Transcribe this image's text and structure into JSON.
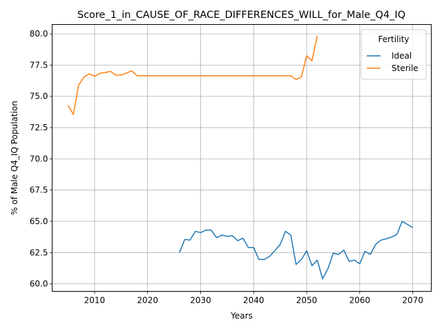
{
  "chart_data": {
    "type": "line",
    "title": "Score_1_in_CAUSE_OF_RACE_DIFFERENCES_WILL_for_Male_Q4_IQ",
    "xlabel": "Years",
    "ylabel": "% of Male Q4_IQ Population",
    "xlim": [
      2002,
      2073.5
    ],
    "ylim": [
      59.4,
      80.75
    ],
    "xticks": [
      2010,
      2020,
      2030,
      2040,
      2050,
      2060,
      2070
    ],
    "yticks": [
      60.0,
      62.5,
      65.0,
      67.5,
      70.0,
      72.5,
      75.0,
      77.5,
      80.0
    ],
    "grid": true,
    "legend": {
      "title": "Fertility",
      "placement": "top-right"
    },
    "colors": {
      "Ideal": "#1f77b4",
      "Sterile": "#ff7f0e"
    },
    "series": [
      {
        "name": "Ideal",
        "x": [
          2026,
          2027,
          2028,
          2029,
          2030,
          2031,
          2032,
          2033,
          2034,
          2035,
          2036,
          2037,
          2038,
          2039,
          2040,
          2041,
          2042,
          2043,
          2044,
          2045,
          2046,
          2047,
          2048,
          2049,
          2050,
          2051,
          2052,
          2053,
          2054,
          2055,
          2056,
          2057,
          2058,
          2059,
          2060,
          2061,
          2062,
          2063,
          2064,
          2065,
          2066,
          2067,
          2068,
          2069,
          2070
        ],
        "values": [
          62.5,
          63.55,
          63.5,
          64.2,
          64.1,
          64.3,
          64.3,
          63.7,
          63.9,
          63.8,
          63.85,
          63.45,
          63.65,
          62.9,
          62.9,
          61.95,
          61.95,
          62.2,
          62.65,
          63.15,
          64.2,
          63.9,
          61.55,
          61.95,
          62.65,
          61.45,
          61.9,
          60.4,
          61.2,
          62.45,
          62.35,
          62.7,
          61.8,
          61.9,
          61.6,
          62.6,
          62.35,
          63.15,
          63.5,
          63.6,
          63.75,
          63.95,
          65.0,
          64.75,
          64.5
        ]
      },
      {
        "name": "Sterile",
        "x": [
          2005,
          2006,
          2007,
          2008,
          2009,
          2010,
          2011,
          2012,
          2013,
          2014,
          2015,
          2016,
          2017,
          2018,
          2019,
          2020,
          2021,
          2022,
          2023,
          2024,
          2025,
          2026,
          2027,
          2028,
          2029,
          2030,
          2031,
          2032,
          2033,
          2034,
          2035,
          2036,
          2037,
          2038,
          2039,
          2040,
          2041,
          2042,
          2043,
          2044,
          2045,
          2046,
          2047,
          2048,
          2049,
          2050,
          2051,
          2052
        ],
        "values": [
          74.3,
          73.55,
          75.9,
          76.55,
          76.8,
          76.6,
          76.85,
          76.9,
          77.0,
          76.7,
          76.7,
          76.85,
          77.05,
          76.65,
          76.65,
          76.65,
          76.65,
          76.65,
          76.65,
          76.65,
          76.65,
          76.65,
          76.65,
          76.65,
          76.65,
          76.65,
          76.65,
          76.65,
          76.65,
          76.65,
          76.65,
          76.65,
          76.65,
          76.65,
          76.65,
          76.65,
          76.65,
          76.65,
          76.65,
          76.65,
          76.65,
          76.65,
          76.65,
          76.35,
          76.55,
          78.25,
          77.85,
          79.85
        ]
      }
    ]
  }
}
